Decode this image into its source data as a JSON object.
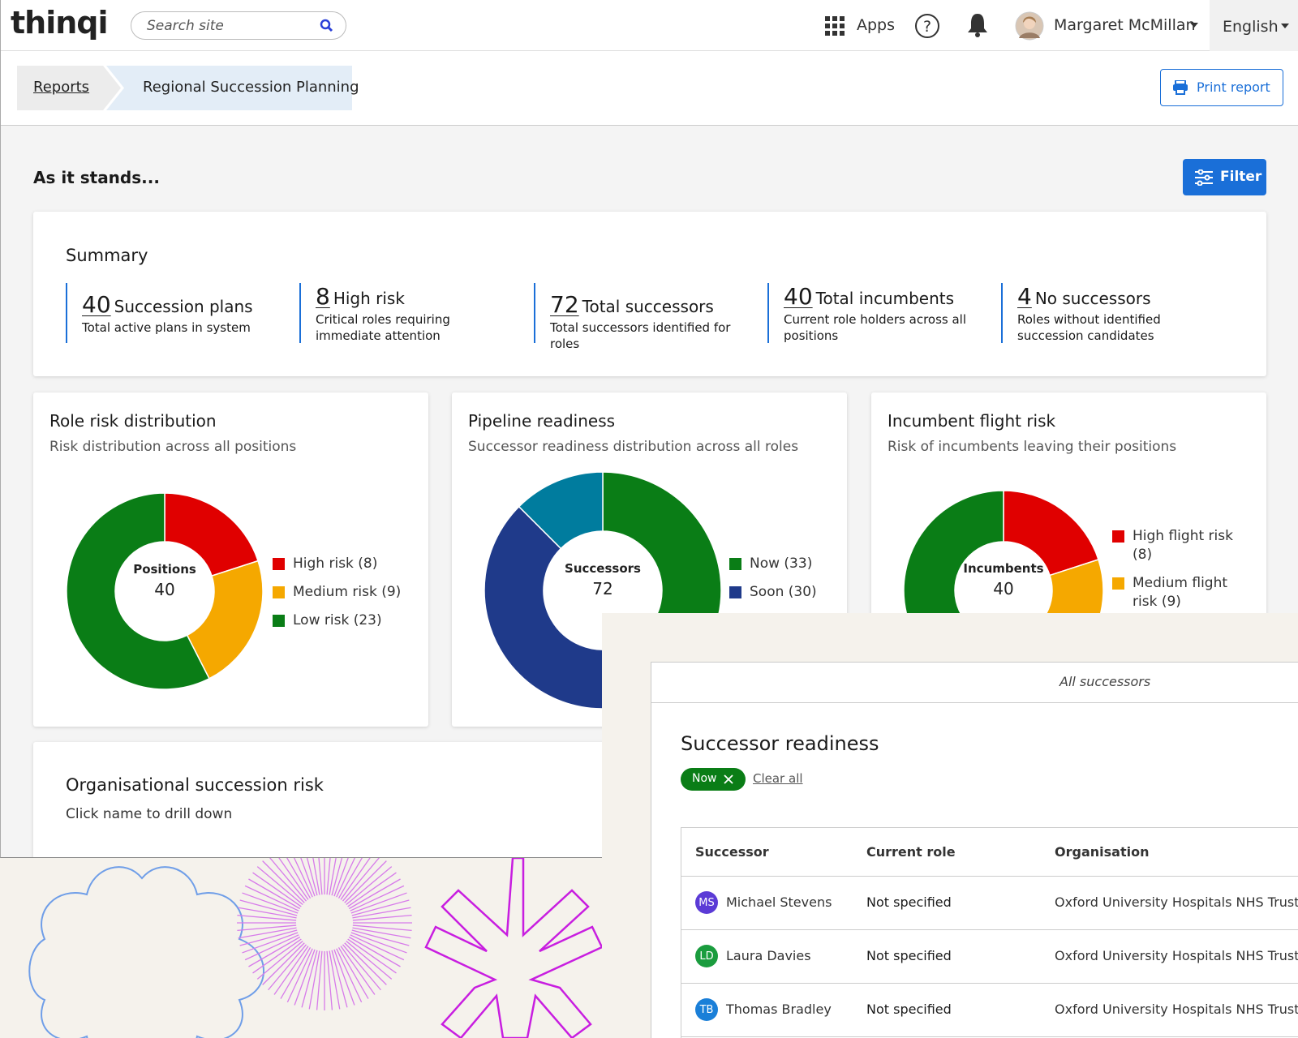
{
  "header": {
    "logo": "thinqi",
    "search_placeholder": "Search site",
    "apps": "Apps",
    "user": "Margaret McMillan",
    "language": "English"
  },
  "breadcrumb": {
    "items": [
      "Reports",
      "Regional Succession Planning"
    ]
  },
  "print_button": "Print report",
  "section_title": "As it stands...",
  "filter_button": "Filter",
  "summary": {
    "title": "Summary",
    "items": [
      {
        "value": 40,
        "label": "Succession plans",
        "description": "Total active plans in system"
      },
      {
        "value": 8,
        "label": "High risk",
        "description": "Critical roles requiring immediate attention"
      },
      {
        "value": 72,
        "label": "Total successors",
        "description": "Total successors identified for roles"
      },
      {
        "value": 40,
        "label": "Total incumbents",
        "description": "Current role holders across all positions"
      },
      {
        "value": 4,
        "label": "No successors",
        "description": "Roles without identified succession candidates"
      }
    ]
  },
  "charts": [
    {
      "type": "donut",
      "title": "Role risk distribution",
      "subtitle": "Risk distribution across all positions",
      "center_label": "Positions",
      "center_value": 40,
      "categories": [
        "High risk (8)",
        "Medium risk (9)",
        "Low risk (23)"
      ],
      "values": [
        8,
        9,
        23
      ],
      "colors": [
        "#e00000",
        "#f5a800",
        "#0a7d16"
      ]
    },
    {
      "type": "donut",
      "title": "Pipeline readiness",
      "subtitle": "Successor readiness distribution across all roles",
      "center_label": "Successors",
      "center_value": 72,
      "categories": [
        "Now (33)",
        "Soon (30)",
        null
      ],
      "values": [
        33,
        30,
        9
      ],
      "colors": [
        "#0a7d16",
        "#1f3a8a",
        "#007c9e"
      ]
    },
    {
      "type": "donut",
      "title": "Incumbent flight risk",
      "subtitle": "Risk of incumbents leaving their positions",
      "center_label": "Incumbents",
      "center_value": 40,
      "categories": [
        "High flight risk (8)",
        "Medium flight risk (9)",
        null
      ],
      "values": [
        8,
        9,
        23
      ],
      "colors": [
        "#e00000",
        "#f5a800",
        "#0a7d16"
      ]
    }
  ],
  "org_risk": {
    "title": "Organisational succession risk",
    "subtitle": "Click name to drill down"
  },
  "panel": {
    "tab": "All successors",
    "title": "Successor readiness",
    "chip": "Now",
    "clear": "Clear all",
    "table": {
      "columns": [
        "Successor",
        "Current role",
        "Organisation"
      ],
      "rows": [
        {
          "initials": "MS",
          "name": "Michael Stevens",
          "role": "Not specified",
          "organisation": "Oxford University Hospitals NHS Trust"
        },
        {
          "initials": "LD",
          "name": "Laura Davies",
          "role": "Not specified",
          "organisation": "Oxford University Hospitals NHS Trust"
        },
        {
          "initials": "TB",
          "name": "Thomas Bradley",
          "role": "Not specified",
          "organisation": "Oxford University Hospitals NHS Trust"
        }
      ]
    }
  }
}
